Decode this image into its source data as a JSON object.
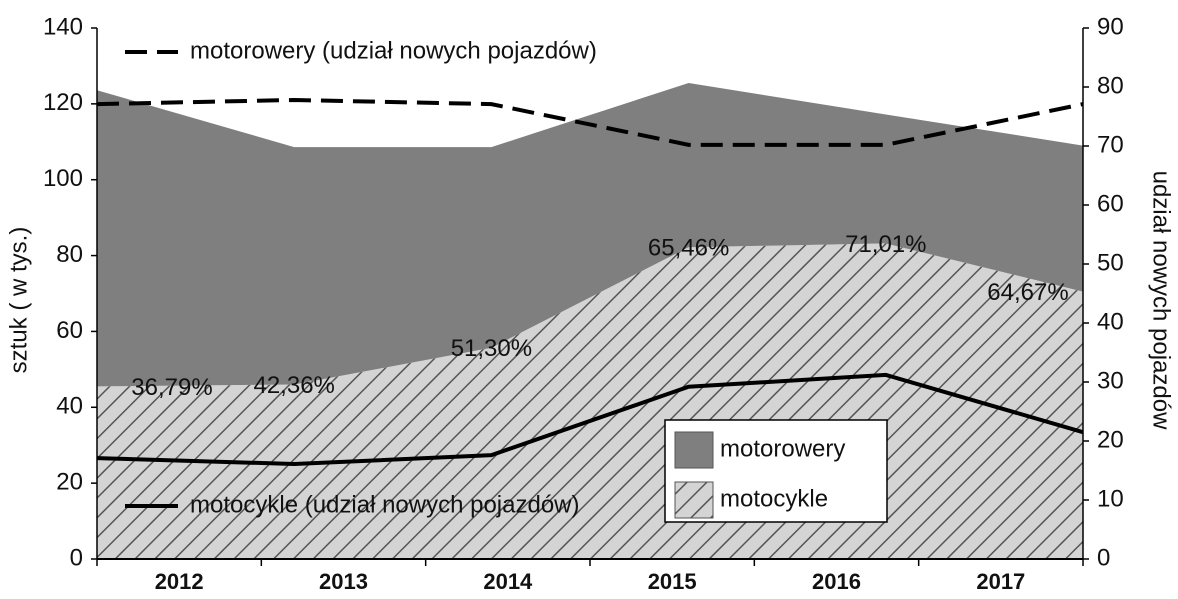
{
  "chart_data": {
    "type": "area",
    "stacked": true,
    "categories": [
      "2012",
      "2013",
      "2014",
      "2015",
      "2016",
      "2017"
    ],
    "ylabel": "sztuk ( w tys.)",
    "y2label": "udział nowych pojazdów",
    "ylim": [
      0,
      140
    ],
    "yticks": [
      0,
      20,
      40,
      60,
      80,
      100,
      120,
      140
    ],
    "y2lim": [
      0,
      90
    ],
    "y2ticks": [
      0,
      10,
      20,
      30,
      40,
      50,
      60,
      70,
      80,
      90
    ],
    "series": [
      {
        "name": "motocykle",
        "kind": "area",
        "color": "#d0d0d0",
        "hatch": true,
        "values": [
          45.5,
          46,
          55.7,
          82.2,
          83.2,
          70.5
        ]
      },
      {
        "name": "motorowery",
        "kind": "area",
        "color": "#7f7f7f",
        "values": [
          78.1,
          62.6,
          52.9,
          43.3,
          34.0,
          38.5
        ]
      },
      {
        "name": "motorowery (udział nowych pojazdów)",
        "kind": "line",
        "dash": true,
        "color": "#000000",
        "axis": "y2",
        "values": [
          77.1,
          77.8,
          77.1,
          70.2,
          70.2,
          77.1
        ]
      },
      {
        "name": "motocykle (udział nowych pojazdów)",
        "kind": "line",
        "dash": false,
        "color": "#000000",
        "axis": "y2",
        "values": [
          17.1,
          16.1,
          17.6,
          29.2,
          31.2,
          21.5
        ]
      }
    ],
    "annotations": [
      "36,79%",
      "42,36%",
      "51,30%",
      "65,46%",
      "71,01%",
      "64,67%"
    ]
  }
}
